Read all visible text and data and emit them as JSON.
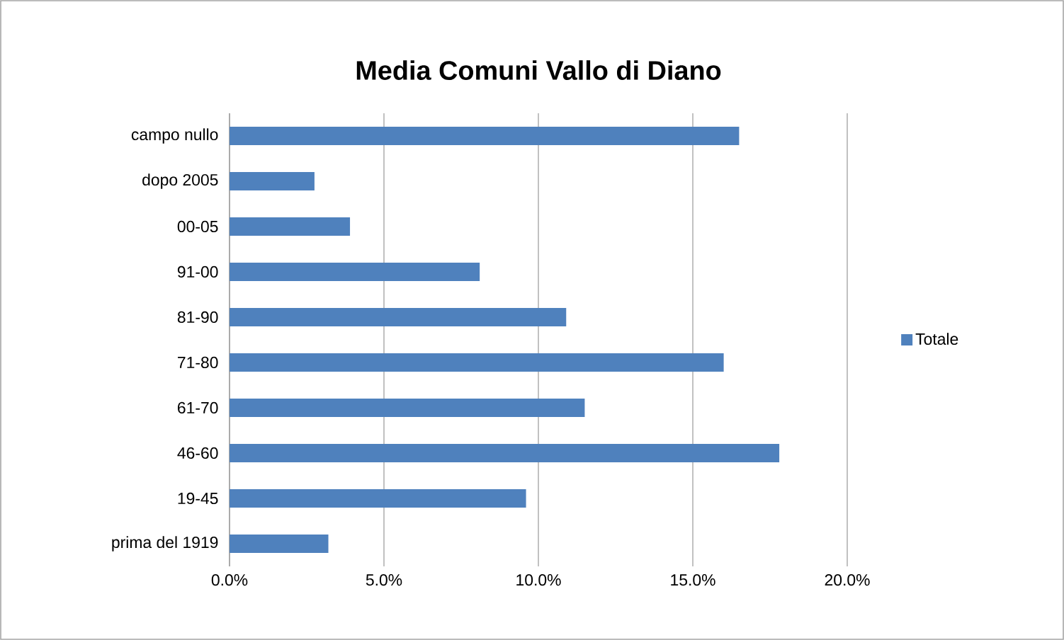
{
  "chart_data": {
    "type": "bar",
    "orientation": "horizontal",
    "title": "Media Comuni Vallo di Diano",
    "categories": [
      "campo nullo",
      "dopo 2005",
      "00-05",
      "91-00",
      "81-90",
      "71-80",
      "61-70",
      "46-60",
      "19-45",
      "prima del 1919"
    ],
    "series": [
      {
        "name": "Totale",
        "color": "#4f81bd",
        "values": [
          16.5,
          2.75,
          3.9,
          8.1,
          10.9,
          16.0,
          11.5,
          17.8,
          9.6,
          3.2
        ]
      }
    ],
    "xlim": [
      0,
      20
    ],
    "xticks": [
      {
        "value": 0,
        "label": "0.0%"
      },
      {
        "value": 5,
        "label": "5.0%"
      },
      {
        "value": 10,
        "label": "10.0%"
      },
      {
        "value": 15,
        "label": "15.0%"
      },
      {
        "value": 20,
        "label": "20.0%"
      }
    ],
    "grid": "x",
    "legend": "right"
  }
}
